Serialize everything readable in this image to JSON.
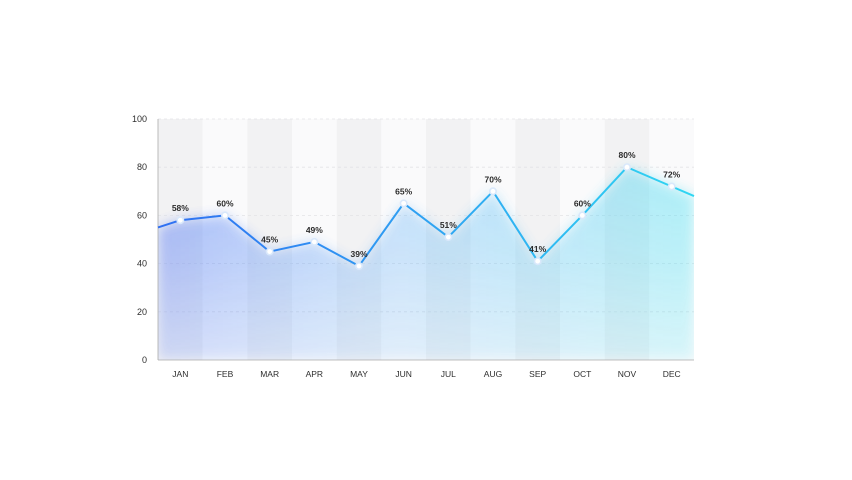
{
  "chart_data": {
    "type": "line",
    "title": "",
    "xlabel": "",
    "ylabel": "",
    "categories": [
      "JAN",
      "FEB",
      "MAR",
      "APR",
      "MAY",
      "JUN",
      "JUL",
      "AUG",
      "SEP",
      "OCT",
      "NOV",
      "DEC"
    ],
    "series": [
      {
        "values": [
          58,
          60,
          45,
          49,
          39,
          65,
          51,
          70,
          41,
          60,
          80,
          72
        ],
        "labels": [
          "58%",
          "60%",
          "45%",
          "49%",
          "39%",
          "65%",
          "51%",
          "70%",
          "41%",
          "60%",
          "80%",
          "72%"
        ]
      }
    ],
    "line_start_value": 55,
    "line_end_value": 68,
    "ylim": [
      0,
      100
    ],
    "yticks": [
      "0",
      "20",
      "40",
      "60",
      "80",
      "100"
    ],
    "grid": true,
    "legend": "none",
    "colors": {
      "line_start": "#2f6ff2",
      "line_end": "#2fd6f2",
      "band_dark": "#f2f2f3",
      "band_light": "#fafafb",
      "axis": "#aaaaaa"
    }
  }
}
